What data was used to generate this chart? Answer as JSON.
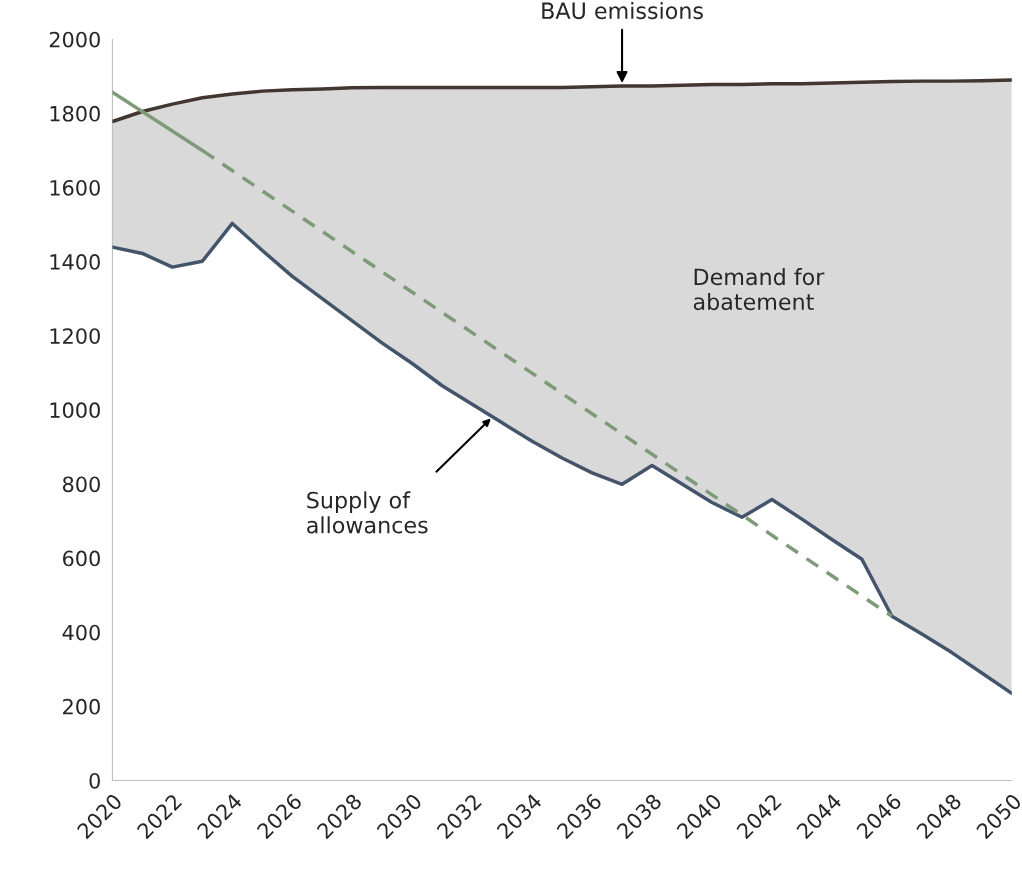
{
  "chart_data": {
    "type": "line",
    "x": [
      2020,
      2021,
      2022,
      2023,
      2024,
      2025,
      2026,
      2027,
      2028,
      2029,
      2030,
      2031,
      2032,
      2033,
      2034,
      2035,
      2036,
      2037,
      2038,
      2039,
      2040,
      2041,
      2042,
      2043,
      2044,
      2045,
      2046,
      2047,
      2048,
      2049,
      2050
    ],
    "series": [
      {
        "color": "#433630",
        "values": [
          1778,
          1805,
          1825,
          1842,
          1852,
          1860,
          1864,
          1866,
          1869,
          1870,
          1870,
          1870,
          1870,
          1870,
          1870,
          1870,
          1872,
          1874,
          1874,
          1876,
          1878,
          1878,
          1880,
          1880,
          1882,
          1884,
          1886,
          1887,
          1887,
          1888,
          1890
        ],
        "lower": [
          1439,
          1422,
          1385,
          1401,
          1503,
          1430,
          1360,
          1300,
          1240,
          1180,
          1125,
          1065,
          1015,
          965,
          915,
          870,
          830,
          799,
          850,
          800,
          750,
          710,
          758,
          705,
          650,
          597,
          443,
          395,
          345,
          290,
          235
        ],
        "upper": [
          1778,
          1805,
          1825,
          1842,
          1852,
          1860,
          1864,
          1866,
          1869,
          1870,
          1870,
          1870,
          1870,
          1870,
          1870,
          1870,
          1872,
          1874,
          1874,
          1876,
          1878,
          1878,
          1880,
          1880,
          1882,
          1884,
          1886,
          1887,
          1887,
          1888,
          1890
        ]
      },
      {
        "color": "#44546a",
        "values": [
          1439,
          1422,
          1385,
          1401,
          1503,
          1430,
          1360,
          1300,
          1240,
          1180,
          1125,
          1065,
          1015,
          965,
          915,
          870,
          830,
          799,
          850,
          800,
          750,
          710,
          758,
          705,
          650,
          597,
          443,
          395,
          345,
          290,
          235
        ]
      },
      {
        "color": "#7f9a78",
        "x": [
          2020,
          2023
        ],
        "values": [
          1857,
          1700
        ],
        "line_style": "solid"
      },
      {
        "color": "#7f9a78",
        "x": [
          2023,
          2046
        ],
        "values": [
          1700,
          443
        ],
        "line_style": "dashed"
      }
    ],
    "xlim": [
      2020,
      2050
    ],
    "xticks": [
      2020,
      2022,
      2024,
      2026,
      2028,
      2030,
      2032,
      2034,
      2036,
      2038,
      2040,
      2042,
      2044,
      2046,
      2048,
      2050
    ],
    "ylim": [
      0,
      2000
    ],
    "yticks": [
      0,
      200,
      400,
      600,
      800,
      1000,
      1200,
      1400,
      1600,
      1800,
      2000
    ],
    "grid": false,
    "legend": false,
    "annotations": [
      {
        "text": "BAU emissions",
        "x": 2037,
        "y": 1874
      },
      "Demand for\nabatement",
      "Supply of\nallowances"
    ]
  }
}
